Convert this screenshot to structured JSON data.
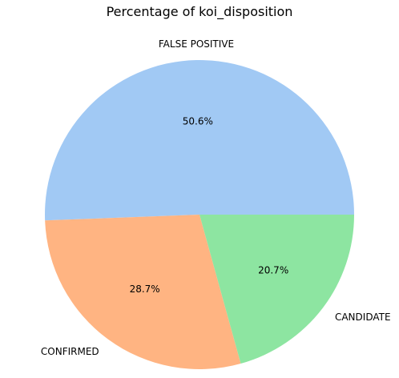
{
  "chart_data": {
    "type": "pie",
    "title": "Percentage of koi_disposition",
    "start_angle_deg": 0,
    "direction": "counterclockwise",
    "slices": [
      {
        "label": "FALSE POSITIVE",
        "value": 50.6,
        "pct_label": "50.6%",
        "color": "#a1c9f4"
      },
      {
        "label": "CONFIRMED",
        "value": 28.7,
        "pct_label": "28.7%",
        "color": "#ffb482"
      },
      {
        "label": "CANDIDATE",
        "value": 20.7,
        "pct_label": "20.7%",
        "color": "#8de5a1"
      }
    ]
  }
}
